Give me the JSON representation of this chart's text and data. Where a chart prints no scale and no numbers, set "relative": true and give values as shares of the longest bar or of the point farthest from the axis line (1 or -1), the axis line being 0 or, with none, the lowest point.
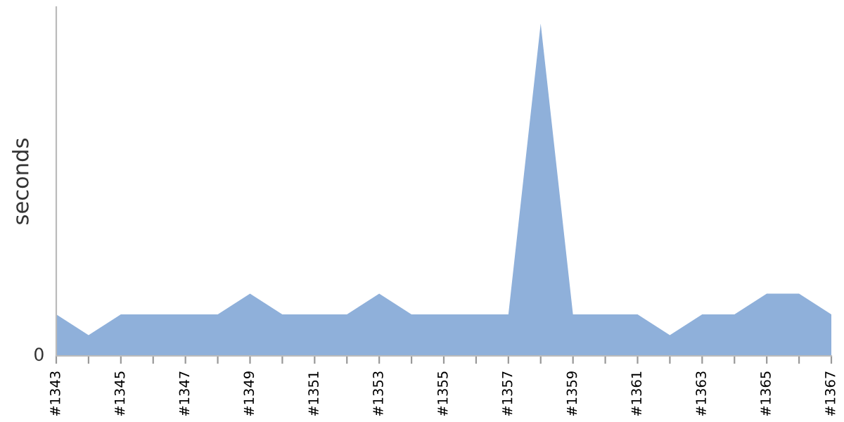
{
  "chart_data": {
    "type": "area",
    "relative": true,
    "ylabel": "seconds",
    "annotations": [
      "0"
    ],
    "categories": [
      "#1343",
      null,
      "#1345",
      null,
      "#1347",
      null,
      "#1349",
      null,
      "#1351",
      null,
      "#1353",
      null,
      "#1355",
      null,
      "#1357",
      null,
      "#1359",
      null,
      "#1361",
      null,
      "#1363",
      null,
      "#1365",
      null,
      "#1367"
    ],
    "series": [
      {
        "color": "#8fb0da",
        "values": [
          0.125,
          0.0625,
          0.125,
          0.125,
          0.125,
          0.125,
          0.1875,
          0.125,
          0.125,
          0.125,
          0.1875,
          0.125,
          0.125,
          0.125,
          0.125,
          1,
          0.125,
          0.125,
          0.125,
          0.0625,
          0.125,
          0.125,
          0.1875,
          0.1875,
          0.125
        ]
      }
    ],
    "grid": false
  }
}
